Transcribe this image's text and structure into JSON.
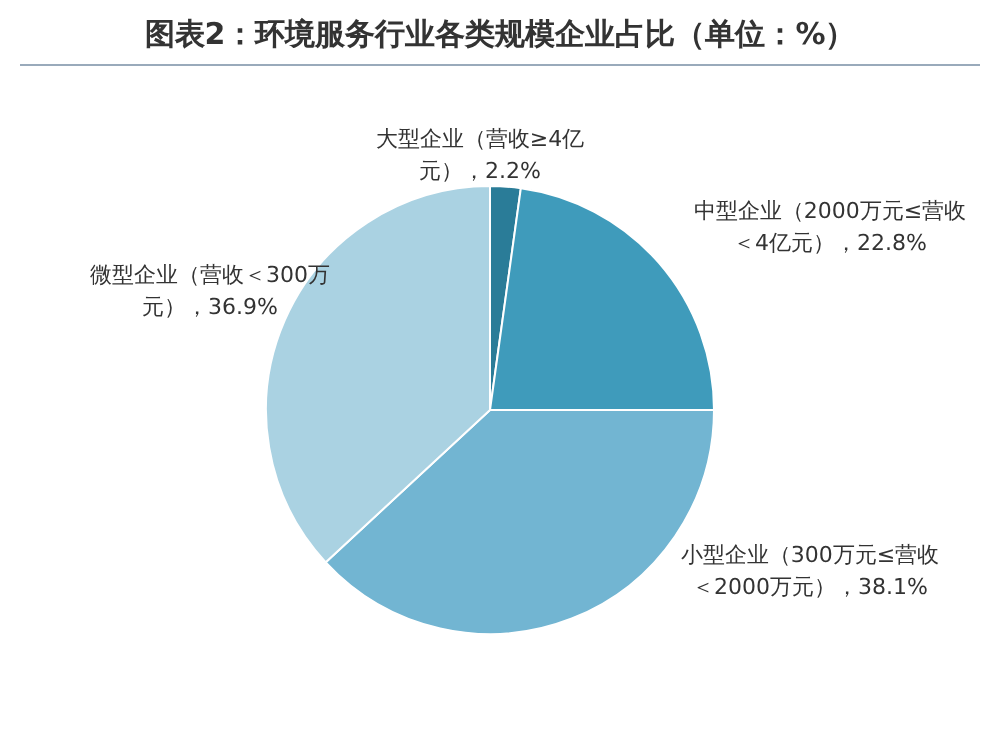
{
  "chart_data": {
    "type": "pie",
    "title": "图表2：环境服务行业各类规模企业占比（单位：%）",
    "categories": [
      "大型企业（营收≥4亿元）",
      "中型企业（2000万元≤营收＜4亿元）",
      "小型企业（300万元≤营收＜2000万元）",
      "微型企业（营收＜300万元）"
    ],
    "values": [
      2.2,
      22.8,
      38.1,
      36.9
    ],
    "value_labels": [
      "2.2%",
      "22.8%",
      "38.1%",
      "36.9%"
    ],
    "colors": [
      "#2a7c98",
      "#3f9bbb",
      "#72b5d2",
      "#aad2e2"
    ]
  }
}
